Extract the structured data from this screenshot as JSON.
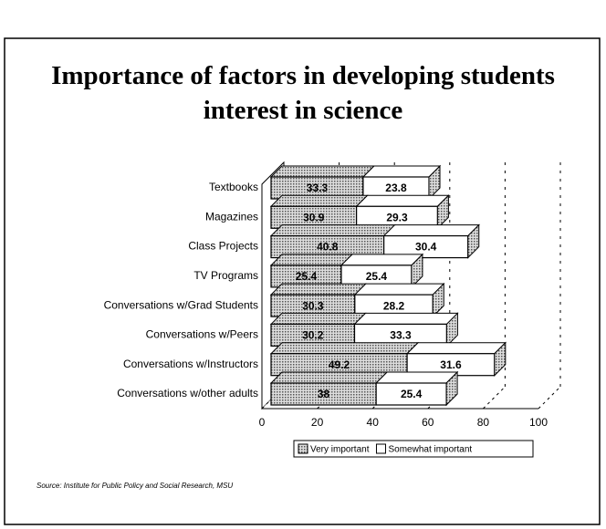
{
  "chart_data": {
    "type": "bar",
    "stacked": true,
    "orientation": "horizontal",
    "title": "Importance of factors in developing students interest in science",
    "categories": [
      "Textbooks",
      "Magazines",
      "Class Projects",
      "TV Programs",
      "Conversations w/Grad Students",
      "Conversations w/Peers",
      "Conversations w/Instructors",
      "Conversations w/other adults"
    ],
    "series": [
      {
        "name": "Very important",
        "color": "#b4b4b4",
        "values": [
          33.3,
          30.9,
          40.8,
          25.4,
          30.3,
          30.2,
          49.2,
          38
        ]
      },
      {
        "name": "Somewhat important",
        "color": "#ffffff",
        "values": [
          23.8,
          29.3,
          30.4,
          25.4,
          28.2,
          33.3,
          31.6,
          25.4
        ]
      }
    ],
    "xlim": [
      0,
      100
    ],
    "xticks": [
      0,
      20,
      40,
      60,
      80,
      100
    ],
    "grid": true,
    "legend": "bottom",
    "source": "Source: Institute for Public Policy and Social Research, MSU"
  }
}
